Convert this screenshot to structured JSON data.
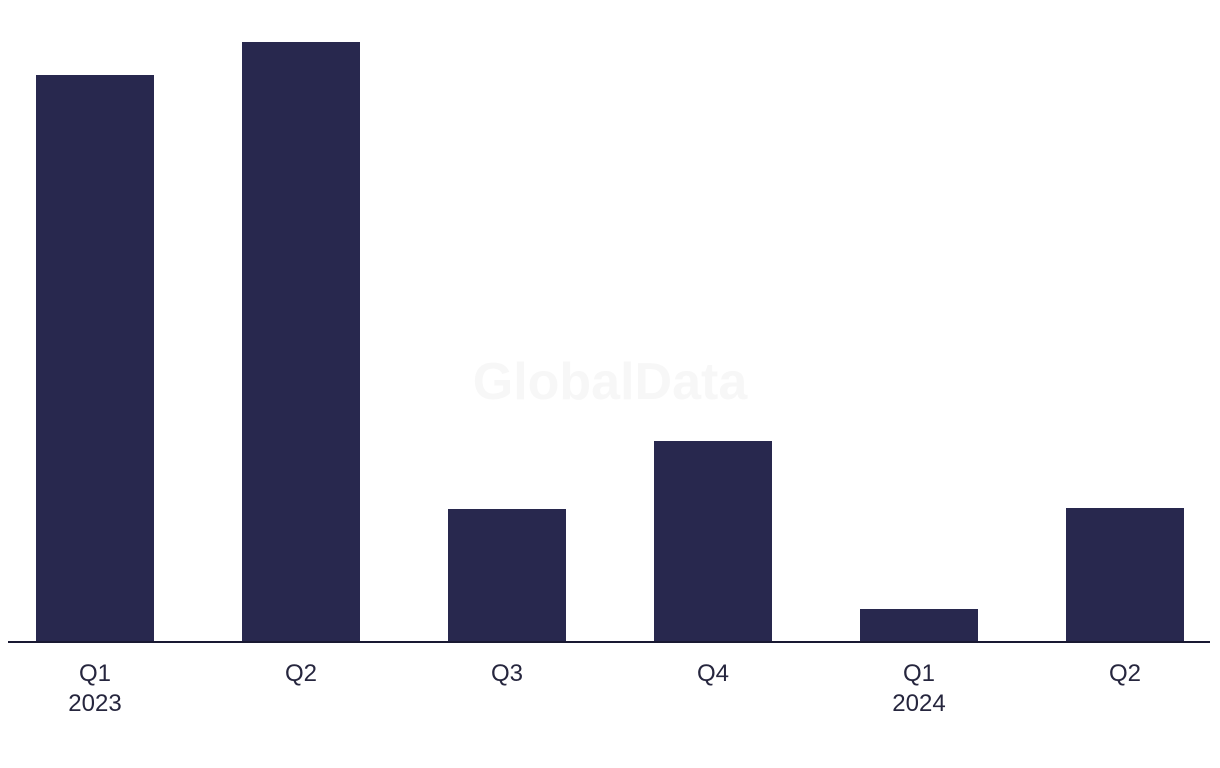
{
  "chart_data": {
    "type": "bar",
    "title": "",
    "watermark": "GlobalData",
    "categories": [
      "Q1 2023",
      "Q2 2023",
      "Q3 2023",
      "Q4 2023",
      "Q1 2024",
      "Q2 2024"
    ],
    "x_ticks": [
      {
        "label": "Q1",
        "year": "2023"
      },
      {
        "label": "Q2"
      },
      {
        "label": "Q3"
      },
      {
        "label": "Q4"
      },
      {
        "label": "Q1",
        "year": "2024"
      },
      {
        "label": "Q2"
      }
    ],
    "values": [
      566,
      599,
      132,
      200,
      32,
      133
    ],
    "value_note": "No y-axis, gridlines or data labels are visible; values are estimated relative bar heights read from the pixels",
    "ylim": [
      0,
      620
    ],
    "xlabel": "",
    "ylabel": "",
    "grid": "off",
    "legend": "none",
    "colors": {
      "bar": "#28284e",
      "axis_line": "#191932",
      "tick_label": "#26263e",
      "watermark": "#f7f7f7",
      "background": "#ffffff"
    }
  }
}
